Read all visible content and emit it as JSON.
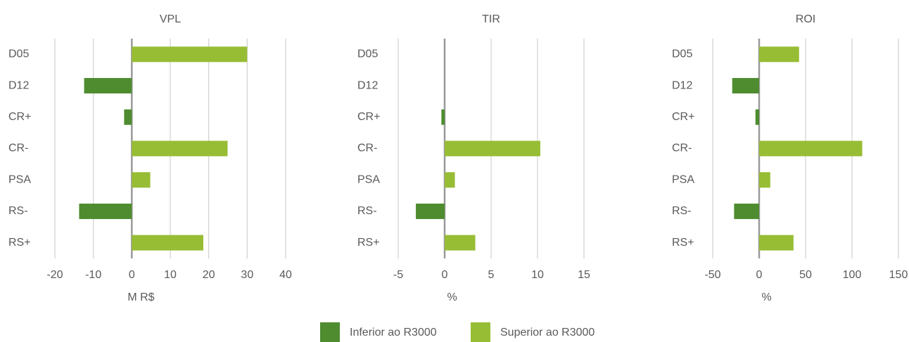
{
  "chart_data": [
    {
      "type": "bar",
      "title": "VPL",
      "xlabel": "M R$",
      "categories": [
        "D05",
        "D12",
        "CR+",
        "CR-",
        "PSA",
        "RS-",
        "RS+"
      ],
      "series": [
        {
          "name": "Inferior ao R3000",
          "color": "#4e8c2f",
          "values": [
            null,
            -12.4,
            -2,
            null,
            null,
            -13.7,
            null
          ]
        },
        {
          "name": "Superior ao R3000",
          "color": "#97bd34",
          "values": [
            30,
            null,
            null,
            24.9,
            4.8,
            null,
            18.6
          ]
        }
      ],
      "xlim": [
        -20,
        40
      ],
      "xticks": [
        -20,
        -10,
        0,
        10,
        20,
        30,
        40
      ],
      "grid": true
    },
    {
      "type": "bar",
      "title": "TIR",
      "xlabel": "%",
      "categories": [
        "D05",
        "D12",
        "CR+",
        "CR-",
        "PSA",
        "RS-",
        "RS+"
      ],
      "series": [
        {
          "name": "Inferior ao R3000",
          "color": "#4e8c2f",
          "values": [
            null,
            null,
            -0.35,
            null,
            null,
            -3.1,
            null
          ]
        },
        {
          "name": "Superior ao R3000",
          "color": "#97bd34",
          "values": [
            null,
            null,
            null,
            10.3,
            1.1,
            null,
            3.3
          ]
        }
      ],
      "xlim": [
        -5,
        15
      ],
      "xticks": [
        -5,
        0,
        5,
        10,
        15
      ],
      "grid": true
    },
    {
      "type": "bar",
      "title": "ROI",
      "xlabel": "%",
      "categories": [
        "D05",
        "D12",
        "CR+",
        "CR-",
        "PSA",
        "RS-",
        "RS+"
      ],
      "series": [
        {
          "name": "Inferior ao R3000",
          "color": "#4e8c2f",
          "values": [
            null,
            -29,
            -4,
            null,
            null,
            -27,
            null
          ]
        },
        {
          "name": "Superior ao R3000",
          "color": "#97bd34",
          "values": [
            43,
            null,
            null,
            111,
            12,
            null,
            37
          ]
        }
      ],
      "xlim": [
        -50,
        150
      ],
      "xticks": [
        -50,
        0,
        50,
        100,
        150
      ],
      "grid": true
    }
  ]
}
